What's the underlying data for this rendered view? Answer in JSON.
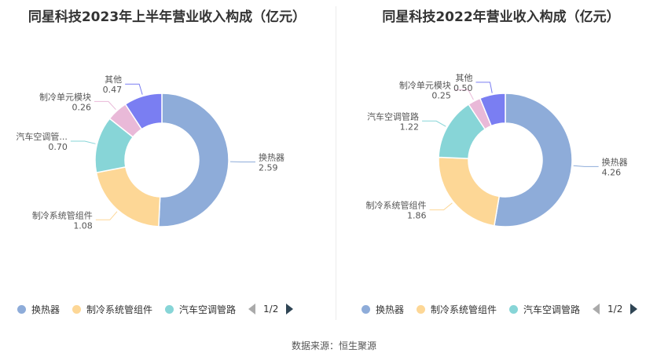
{
  "source_label": "数据来源：恒生聚源",
  "colors": {
    "换热器": "#8eacd9",
    "制冷系统管组件": "#fdd796",
    "汽车空调管路": "#87d5d7",
    "制冷单元模块": "#e9b9d8",
    "其他": "#7a7ef2"
  },
  "panels": [
    {
      "title": "同星科技2023年上半年营业收入构成（亿元）",
      "legend": {
        "items": [
          "换热器",
          "制冷系统管组件",
          "汽车空调管路"
        ],
        "page": "1/2"
      }
    },
    {
      "title": "同星科技2022年营业收入构成（亿元）",
      "legend": {
        "items": [
          "换热器",
          "制冷系统管组件",
          "汽车空调管路"
        ],
        "page": "1/2"
      }
    }
  ],
  "chart_data": [
    {
      "type": "pie",
      "title": "同星科技2023年上半年营业收入构成（亿元）",
      "donut": true,
      "slices": [
        {
          "name": "换热器",
          "value": 2.59,
          "label": "换热器",
          "value_label": "2.59"
        },
        {
          "name": "制冷系统管组件",
          "value": 1.08,
          "label": "制冷系统管组件",
          "value_label": "1.08"
        },
        {
          "name": "汽车空调管路",
          "value": 0.7,
          "label": "汽车空调管...",
          "value_label": "0.70"
        },
        {
          "name": "制冷单元模块",
          "value": 0.26,
          "label": "制冷单元模块",
          "value_label": "0.26"
        },
        {
          "name": "其他",
          "value": 0.47,
          "label": "其他",
          "value_label": "0.47"
        }
      ]
    },
    {
      "type": "pie",
      "title": "同星科技2022年营业收入构成（亿元）",
      "donut": true,
      "slices": [
        {
          "name": "换热器",
          "value": 4.26,
          "label": "换热器",
          "value_label": "4.26"
        },
        {
          "name": "制冷系统管组件",
          "value": 1.86,
          "label": "制冷系统管组件",
          "value_label": "1.86"
        },
        {
          "name": "汽车空调管路",
          "value": 1.22,
          "label": "汽车空调管路",
          "value_label": "1.22"
        },
        {
          "name": "制冷单元模块",
          "value": 0.25,
          "label": "制冷单元模块",
          "value_label": "0.25"
        },
        {
          "name": "其他",
          "value": 0.5,
          "label": "其他",
          "value_label": "0.50"
        }
      ]
    }
  ]
}
